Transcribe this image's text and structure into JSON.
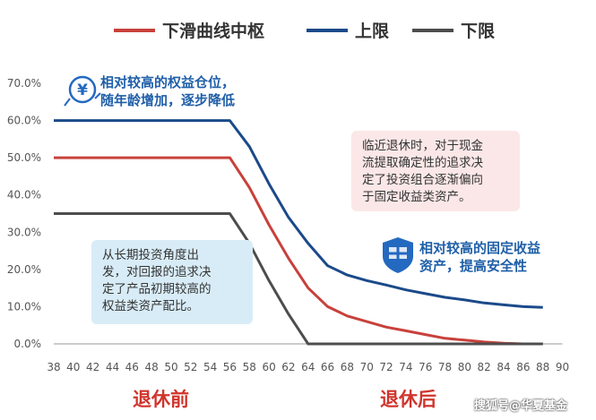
{
  "chart_data": {
    "type": "line",
    "x": [
      38,
      40,
      42,
      44,
      46,
      48,
      50,
      52,
      54,
      56,
      58,
      60,
      62,
      64,
      66,
      68,
      70,
      72,
      74,
      76,
      78,
      80,
      82,
      84,
      86,
      88
    ],
    "xlim": [
      38,
      90
    ],
    "ylim": [
      0,
      70
    ],
    "yticks": [
      "0.0%",
      "10.0%",
      "20.0%",
      "30.0%",
      "40.0%",
      "50.0%",
      "60.0%",
      "70.0%"
    ],
    "xticks": [
      "38",
      "40",
      "42",
      "44",
      "46",
      "48",
      "50",
      "52",
      "54",
      "56",
      "58",
      "60",
      "62",
      "64",
      "66",
      "68",
      "70",
      "72",
      "74",
      "76",
      "78",
      "80",
      "82",
      "84",
      "86",
      "88",
      "90"
    ],
    "grid": false,
    "legend_position": "top",
    "series": [
      {
        "name": "下滑曲线中枢",
        "color": "#c8413b",
        "values": [
          50,
          50,
          50,
          50,
          50,
          50,
          50,
          50,
          50,
          50,
          42,
          32,
          23,
          15,
          10,
          7.5,
          6,
          4.5,
          3.5,
          2.5,
          1.5,
          1,
          0.5,
          0.2,
          0,
          0
        ]
      },
      {
        "name": "上限",
        "color": "#1b4a8a",
        "values": [
          60,
          60,
          60,
          60,
          60,
          60,
          60,
          60,
          60,
          60,
          53,
          43,
          34,
          27,
          21,
          18.5,
          17,
          15.8,
          14.5,
          13.5,
          12.5,
          11.8,
          11,
          10.5,
          10,
          9.8
        ]
      },
      {
        "name": "下限",
        "color": "#4d4d4d",
        "values": [
          35,
          35,
          35,
          35,
          35,
          35,
          35,
          35,
          35,
          35,
          27,
          17,
          8,
          0,
          0,
          0,
          0,
          0,
          0,
          0,
          0,
          0,
          0,
          0,
          0,
          0
        ]
      }
    ]
  },
  "annotations": {
    "top_left": "相对较高的权益仓位，\n随年龄增加，逐步降低",
    "box_left": "从长期投资角度出\n发，对回报的追求决\n定了产品初期较高的\n权益类资产配比。",
    "box_right": "临近退休时，对于现金\n流提取确定性的追求决\n定了投资组合逐渐偏向\n于固定收益类资产。",
    "right_note": "相对较高的固定收益\n资产，提高安全性"
  },
  "footer": {
    "before": "退休前",
    "after": "退休后"
  },
  "watermark": "搜狐号@华夏基金",
  "icons": {
    "money": "yen-icon",
    "shield": "shield-icon"
  }
}
